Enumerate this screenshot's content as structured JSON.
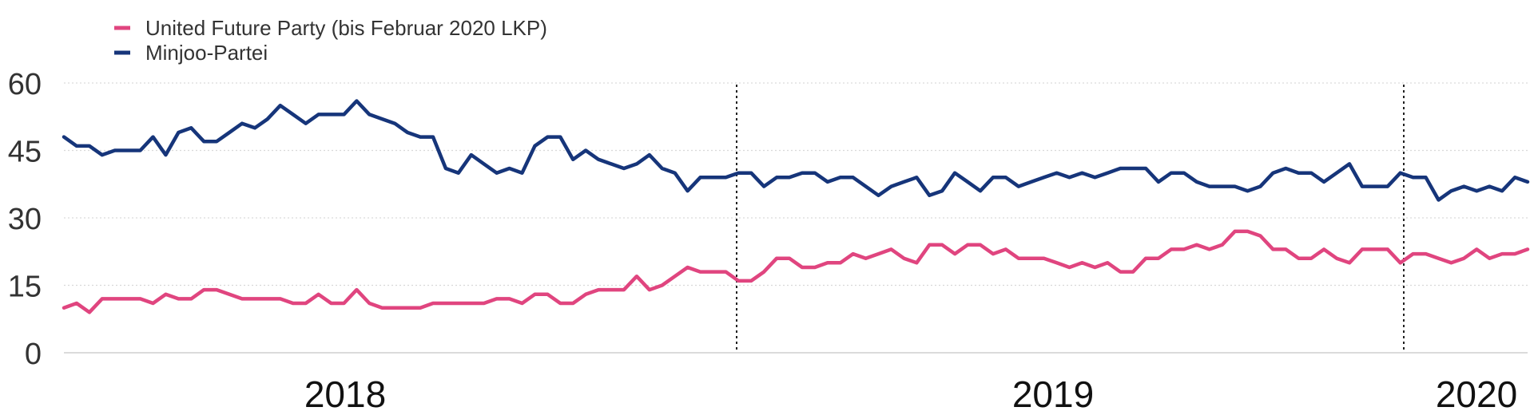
{
  "chart_data": {
    "type": "line",
    "title": "",
    "xlabel": "",
    "ylabel": "",
    "ylim": [
      0,
      60
    ],
    "yticks": [
      0,
      15,
      30,
      45,
      60
    ],
    "grid": true,
    "legend_position": "top-left",
    "x_labels": [
      "2018",
      "2019",
      "2020"
    ],
    "series": [
      {
        "name": "United Future Party (bis Februar 2020 LKP)",
        "color": "#e0457f",
        "values": [
          10,
          11,
          9,
          12,
          12,
          12,
          12,
          11,
          13,
          12,
          12,
          14,
          14,
          13,
          12,
          12,
          12,
          12,
          11,
          11,
          13,
          11,
          11,
          14,
          11,
          10,
          10,
          10,
          10,
          11,
          11,
          11,
          11,
          11,
          12,
          12,
          11,
          13,
          13,
          11,
          11,
          13,
          14,
          14,
          14,
          17,
          14,
          15,
          17,
          19,
          18,
          18,
          18,
          16,
          16,
          18,
          21,
          21,
          19,
          19,
          20,
          20,
          22,
          21,
          22,
          23,
          21,
          20,
          24,
          24,
          22,
          24,
          24,
          22,
          23,
          21,
          21,
          21,
          20,
          19,
          20,
          19,
          20,
          18,
          18,
          21,
          21,
          23,
          23,
          24,
          23,
          24,
          27,
          27,
          26,
          23,
          23,
          21,
          21,
          23,
          21,
          20,
          23,
          23,
          23,
          20,
          22,
          22,
          21,
          20,
          21,
          23,
          21,
          22,
          22,
          23
        ]
      },
      {
        "name": "Minjoo-Partei",
        "color": "#16357a",
        "values": [
          48,
          46,
          46,
          44,
          45,
          45,
          45,
          48,
          44,
          49,
          50,
          47,
          47,
          49,
          51,
          50,
          52,
          55,
          53,
          51,
          53,
          53,
          53,
          56,
          53,
          52,
          51,
          49,
          48,
          48,
          41,
          40,
          44,
          42,
          40,
          41,
          40,
          46,
          48,
          48,
          43,
          45,
          43,
          42,
          41,
          42,
          44,
          41,
          40,
          36,
          39,
          39,
          39,
          40,
          40,
          37,
          39,
          39,
          40,
          40,
          38,
          39,
          39,
          37,
          35,
          37,
          38,
          39,
          35,
          36,
          40,
          38,
          36,
          39,
          39,
          37,
          38,
          39,
          40,
          39,
          40,
          39,
          40,
          41,
          41,
          41,
          38,
          40,
          40,
          38,
          37,
          37,
          37,
          36,
          37,
          40,
          41,
          40,
          40,
          38,
          40,
          42,
          37,
          37,
          37,
          40,
          39,
          39,
          34,
          36,
          37,
          36,
          37,
          36,
          39,
          38
        ]
      }
    ]
  }
}
